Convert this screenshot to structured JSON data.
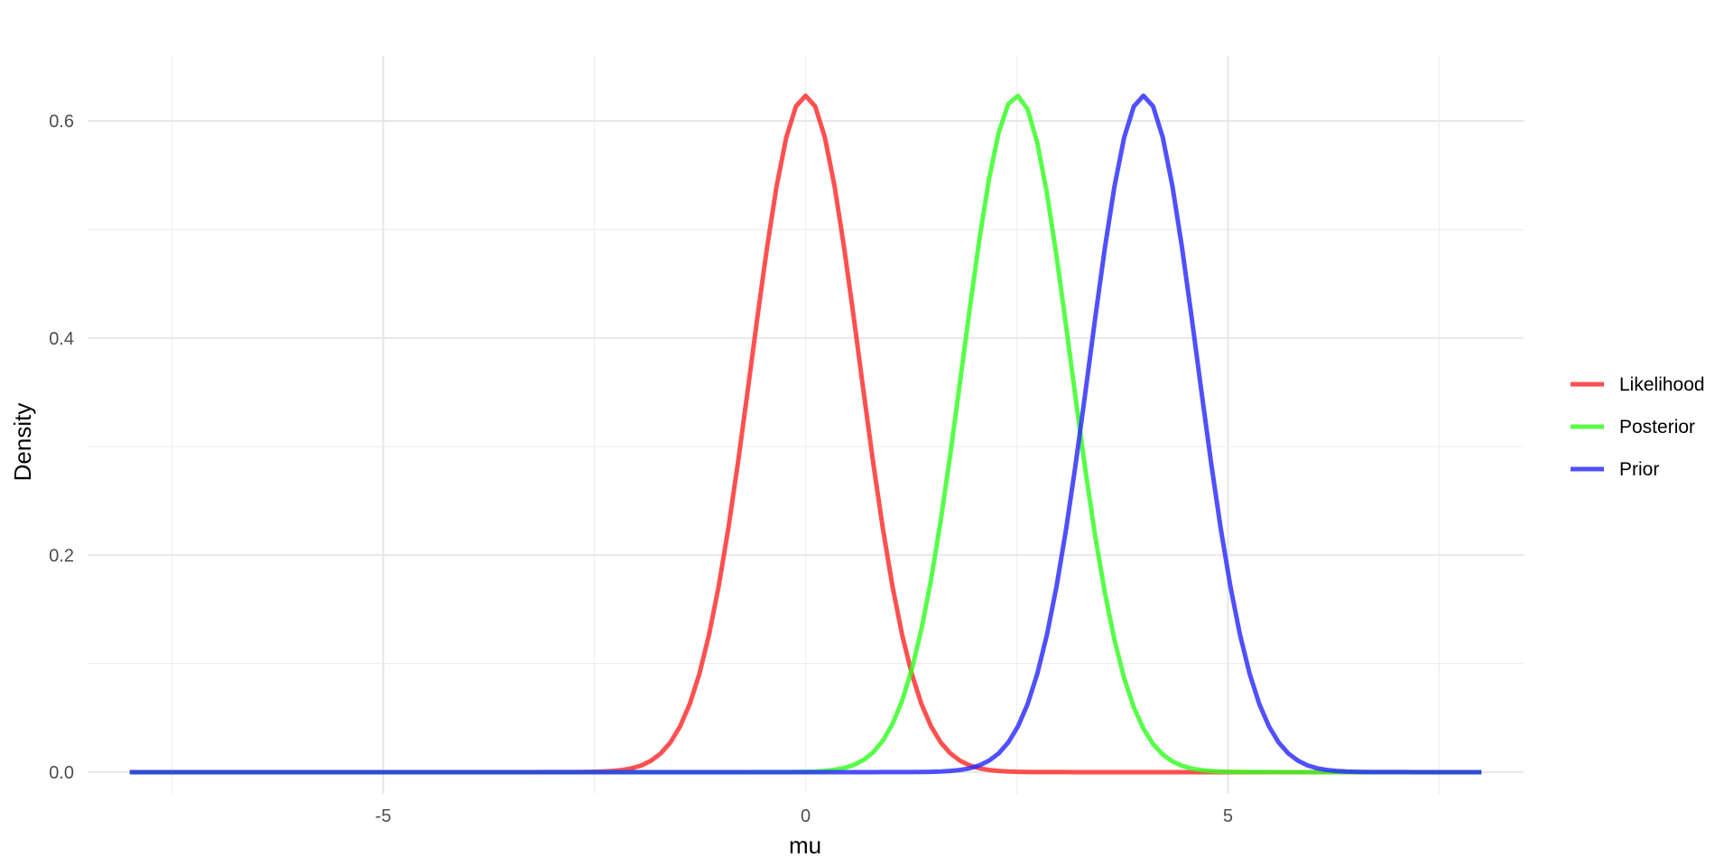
{
  "chart_data": {
    "type": "line",
    "title": "",
    "xlabel": "mu",
    "ylabel": "Density",
    "xlim": [
      -8.5,
      8.5
    ],
    "ylim": [
      -0.02,
      0.66
    ],
    "x_ticks": [
      -5,
      5
    ],
    "x_tick_labels": [
      "-5",
      "5"
    ],
    "x_minor_ticks": [
      -7.5,
      -2.5,
      0,
      2.5,
      7.5
    ],
    "x_extra_labels": [
      {
        "x": 0,
        "label": "0"
      }
    ],
    "y_ticks": [
      0.0,
      0.2,
      0.4,
      0.6
    ],
    "y_tick_labels": [
      "0.0",
      "0.2",
      "0.4",
      "0.6"
    ],
    "y_minor_ticks": [
      0.1,
      0.3,
      0.5
    ],
    "x_range": [
      -8,
      8
    ],
    "grid": true,
    "legend_position": "right",
    "legend": [
      {
        "label": "Likelihood",
        "color": "#ff2a2a"
      },
      {
        "label": "Posterior",
        "color": "#33ff22"
      },
      {
        "label": "Prior",
        "color": "#2a2aff"
      }
    ],
    "series": [
      {
        "name": "Likelihood",
        "color": "#ff2a2a",
        "mean": 0.0,
        "sd": 0.64
      },
      {
        "name": "Posterior",
        "color": "#33ff22",
        "mean": 2.5,
        "sd": 0.64
      },
      {
        "name": "Prior",
        "color": "#2a2aff",
        "mean": 4.0,
        "sd": 0.64
      }
    ]
  }
}
